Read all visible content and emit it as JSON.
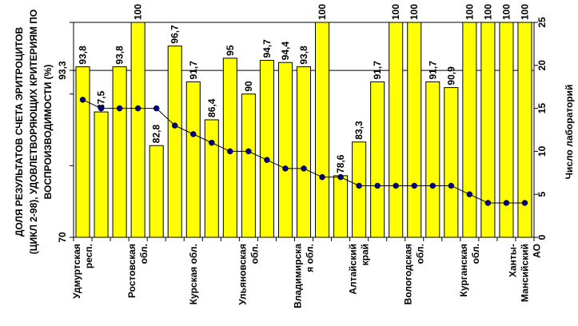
{
  "chart_data": {
    "type": "bar",
    "ylabel": "ДОЛЯ РЕЗУЛЬТАТОВ СЧЕТА ЭРИТРОЦИТОВ (ЦИКЛ 2-98), УДОВЛЕТВОРЯЮЩИХ КРИТЕРИЯМ ПО ВОСПРОИЗВОДИМОСТИ (%)",
    "ylabel_lines": [
      "ДОЛЯ РЕЗУЛЬТАТОВ СЧЕТА ЭРИТРОЦИТОВ",
      "(ЦИКЛ 2-98), УДОВЛЕТВОРЯЮЩИХ КРИТЕРИЯМ ПО",
      "ВОСПРОИЗВОДИМОСТИ (%)"
    ],
    "y2label": "Число лабораторий",
    "ylim": [
      70,
      100
    ],
    "y2lim": [
      0,
      25
    ],
    "y_tick_labels": [
      "70",
      "93,3"
    ],
    "y_ticks": [
      70,
      80,
      90,
      93.3,
      100
    ],
    "y2_ticks": [
      0,
      5,
      10,
      15,
      20,
      25
    ],
    "y2_tick_labels": [
      "0",
      "5",
      "10",
      "15",
      "20",
      "25"
    ],
    "reference_line": 93.3,
    "category_labels": [
      [
        "Удмуртская",
        "респ."
      ],
      [],
      [],
      [
        "Ростовская",
        "обл."
      ],
      [],
      [],
      [
        "Курская обл."
      ],
      [],
      [],
      [
        "Ульяновская",
        "обл."
      ],
      [],
      [],
      [
        "Владимирска",
        "я обл."
      ],
      [],
      [],
      [
        "Алтайский",
        "край"
      ],
      [],
      [],
      [
        "Вологодская",
        "обл."
      ],
      [],
      [],
      [
        "Курганская",
        "обл."
      ],
      [],
      [],
      [
        "Ханты-",
        "Мансийский",
        "АО"
      ]
    ],
    "series": [
      {
        "name": "Доля результатов (%)",
        "type": "bar",
        "color": "#FFFF00",
        "values": [
          93.8,
          87.5,
          93.8,
          100,
          82.8,
          96.7,
          91.7,
          86.4,
          95,
          90,
          94.7,
          94.4,
          93.8,
          100,
          78.6,
          83.3,
          91.7,
          100,
          100,
          91.7,
          90.9,
          100,
          100,
          100,
          100
        ],
        "labels": [
          "93,8",
          "87,5",
          "93,8",
          "100",
          "82,8",
          "96,7",
          "91,7",
          "86,4",
          "95",
          "90",
          "94,7",
          "94,4",
          "93,8",
          "100",
          "78,6",
          "83,3",
          "91,7",
          "100",
          "100",
          "91,7",
          "90,9",
          "100",
          "100",
          "100",
          "100"
        ]
      },
      {
        "name": "Число лабораторий",
        "type": "line",
        "axis": "right",
        "color": "#000080",
        "values": [
          16,
          15,
          15,
          15,
          15,
          13,
          12,
          11,
          10,
          10,
          9,
          8,
          8,
          7,
          7,
          6,
          6,
          6,
          6,
          6,
          6,
          5,
          4,
          4,
          4
        ]
      }
    ]
  }
}
